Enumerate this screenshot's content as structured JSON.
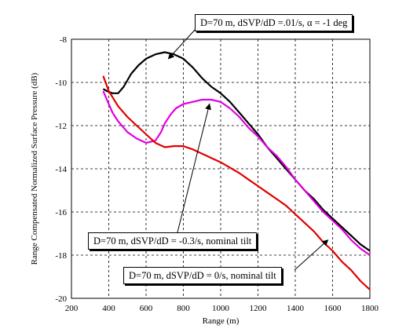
{
  "chart_data": {
    "type": "line",
    "xlabel": "Range (m)",
    "ylabel": "Range Compensated Normalized Surface Pressure (dB)",
    "xlim": [
      200,
      1800
    ],
    "ylim": [
      -20,
      -8
    ],
    "xticks": [
      "200",
      "400",
      "600",
      "800",
      "1000",
      "1200",
      "1400",
      "1600",
      "1800"
    ],
    "yticks": [
      "-8",
      "-10",
      "-12",
      "-14",
      "-16",
      "-18",
      "-20"
    ],
    "grid": true,
    "series": [
      {
        "name": "D=70 m, dSVP/dD =.01/s, α = -1 deg",
        "color": "#000000",
        "x": [
          370,
          390,
          420,
          450,
          480,
          520,
          560,
          600,
          650,
          700,
          750,
          800,
          850,
          900,
          950,
          1000,
          1050,
          1100,
          1150,
          1200,
          1250,
          1300,
          1350,
          1400,
          1450,
          1500,
          1550,
          1600,
          1650,
          1700,
          1750,
          1800
        ],
        "values": [
          -10.3,
          -10.4,
          -10.5,
          -10.5,
          -10.2,
          -9.6,
          -9.2,
          -8.9,
          -8.7,
          -8.6,
          -8.7,
          -8.9,
          -9.3,
          -9.8,
          -10.2,
          -10.5,
          -10.9,
          -11.4,
          -11.9,
          -12.4,
          -13.0,
          -13.5,
          -14.0,
          -14.5,
          -15.0,
          -15.4,
          -15.9,
          -16.3,
          -16.7,
          -17.1,
          -17.5,
          -17.8
        ]
      },
      {
        "name": "D=70 m, dSVP/dD = -0.3/s, nominal tilt",
        "color": "#e000e0",
        "x": [
          370,
          390,
          420,
          450,
          500,
          550,
          600,
          650,
          680,
          700,
          730,
          760,
          800,
          850,
          900,
          950,
          1000,
          1050,
          1100,
          1150,
          1200,
          1250,
          1300,
          1350,
          1400,
          1450,
          1500,
          1550,
          1600,
          1650,
          1700,
          1750,
          1800
        ],
        "values": [
          -10.4,
          -10.8,
          -11.4,
          -11.8,
          -12.3,
          -12.6,
          -12.8,
          -12.7,
          -12.3,
          -11.9,
          -11.5,
          -11.2,
          -11.0,
          -10.9,
          -10.8,
          -10.8,
          -10.9,
          -11.2,
          -11.6,
          -12.1,
          -12.5,
          -13.0,
          -13.4,
          -13.9,
          -14.5,
          -15.0,
          -15.5,
          -16.0,
          -16.4,
          -16.8,
          -17.3,
          -17.7,
          -18.0
        ]
      },
      {
        "name": "D=70 m, dSVP/dD = 0/s, nominal tilt",
        "color": "#e00000",
        "x": [
          370,
          400,
          450,
          500,
          550,
          600,
          650,
          700,
          750,
          800,
          850,
          900,
          950,
          1000,
          1050,
          1100,
          1150,
          1200,
          1250,
          1300,
          1350,
          1400,
          1450,
          1500,
          1550,
          1600,
          1650,
          1700,
          1750,
          1800
        ],
        "values": [
          -9.7,
          -10.4,
          -11.1,
          -11.6,
          -12.0,
          -12.4,
          -12.8,
          -13.0,
          -12.95,
          -12.95,
          -13.1,
          -13.3,
          -13.5,
          -13.7,
          -13.95,
          -14.2,
          -14.5,
          -14.8,
          -15.1,
          -15.4,
          -15.7,
          -16.1,
          -16.5,
          -16.9,
          -17.4,
          -17.8,
          -18.3,
          -18.7,
          -19.2,
          -19.6
        ]
      }
    ],
    "annotations": [
      "D=70 m, dSVP/dD =.01/s, α = -1 deg",
      "D=70 m, dSVP/dD = -0.3/s, nominal tilt",
      "D=70 m, dSVP/dD = 0/s, nominal tilt"
    ]
  }
}
